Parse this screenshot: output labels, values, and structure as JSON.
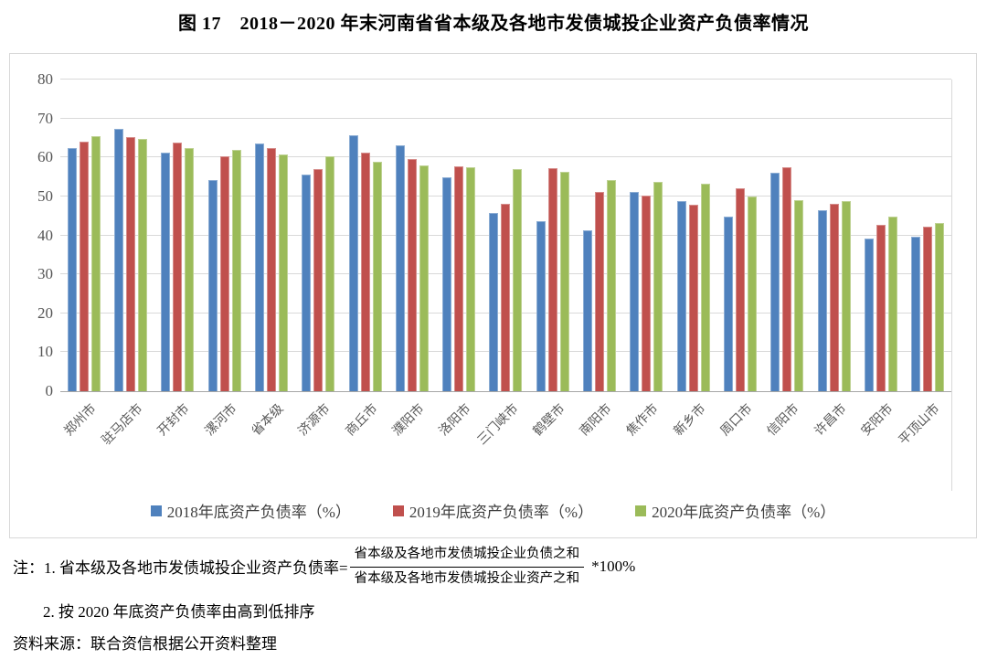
{
  "title": "图 17　2018－2020 年末河南省省本级及各地市发债城投企业资产负债率情况",
  "chart_data": {
    "type": "bar",
    "title": "图 17　2018－2020 年末河南省省本级及各地市发债城投企业资产负债率情况",
    "categories": [
      "郑州市",
      "驻马店市",
      "开封市",
      "漯河市",
      "省本级",
      "济源市",
      "商丘市",
      "濮阳市",
      "洛阳市",
      "三门峡市",
      "鹤壁市",
      "南阳市",
      "焦作市",
      "新乡市",
      "周口市",
      "信阳市",
      "许昌市",
      "安阳市",
      "平顶山市"
    ],
    "series": [
      {
        "name": "2018年底资产负债率（%）",
        "color": "#4F81BD",
        "values": [
          62.3,
          67.3,
          61.2,
          54.2,
          63.6,
          55.6,
          65.8,
          63.1,
          54.9,
          45.7,
          43.7,
          41.4,
          51.2,
          48.9,
          44.7,
          56.1,
          46.5,
          39.1,
          39.7
        ]
      },
      {
        "name": "2019年底资产负债率（%）",
        "color": "#C0504D",
        "values": [
          64.1,
          65.2,
          63.8,
          60.3,
          62.5,
          57.0,
          61.2,
          59.6,
          57.6,
          48.1,
          57.3,
          51.1,
          50.3,
          47.9,
          52.0,
          57.4,
          48.0,
          42.7,
          42.2
        ]
      },
      {
        "name": "2020年底资产负债率（%）",
        "color": "#9BBB59",
        "values": [
          65.5,
          64.7,
          62.5,
          61.9,
          60.7,
          60.3,
          58.8,
          57.9,
          57.5,
          57.1,
          56.2,
          54.1,
          53.8,
          53.3,
          50.0,
          49.1,
          48.8,
          44.9,
          43.1
        ]
      }
    ],
    "xlabel": "",
    "ylabel": "",
    "ylim": [
      0,
      80
    ],
    "yticks": [
      0,
      10,
      20,
      30,
      40,
      50,
      60,
      70,
      80
    ],
    "grid": true,
    "legend_position": "bottom"
  },
  "notes": {
    "note1_prefix": "注：1. 省本级及各地市发债城投企业资产负债率=",
    "fraction_numerator": "省本级及各地市发债城投企业负债之和",
    "fraction_denominator": "省本级及各地市发债城投企业资产之和",
    "note1_suffix": "*100%",
    "note2": "2. 按 2020 年底资产负债率由高到低排序",
    "source": "资料来源：联合资信根据公开资料整理"
  }
}
